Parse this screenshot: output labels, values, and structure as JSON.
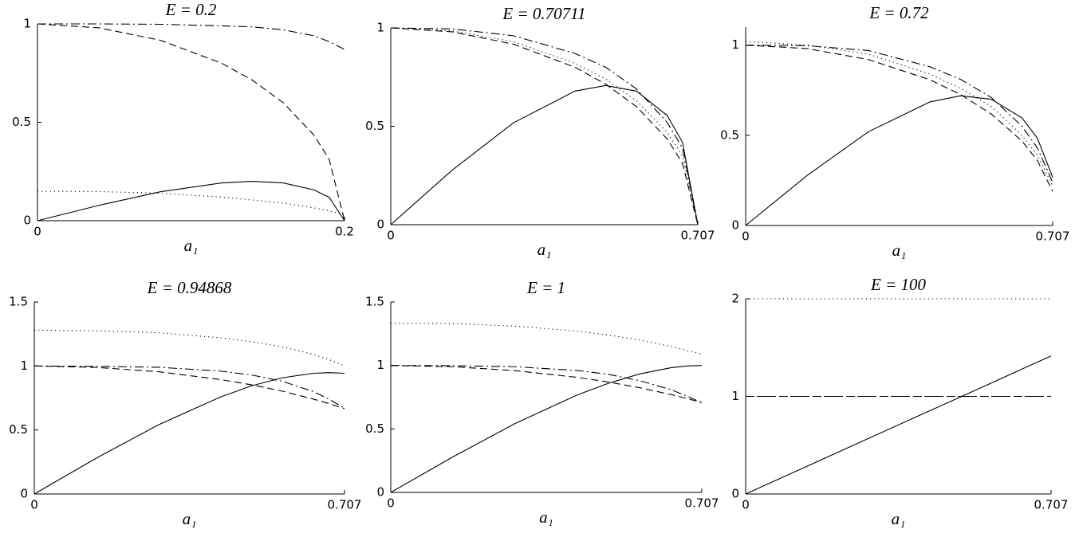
{
  "chart_data": [
    {
      "type": "line",
      "title": "E = 0.2",
      "xlabel": "a₁",
      "xlim": [
        0,
        0.2
      ],
      "xticks": [
        0,
        0.2
      ],
      "ylim": [
        0,
        1
      ],
      "yticks": [
        0,
        0.5,
        1
      ],
      "x": [
        0,
        0.04,
        0.08,
        0.12,
        0.14,
        0.16,
        0.18,
        0.19,
        0.2
      ],
      "series": [
        {
          "color": "#000000",
          "dash": "solid",
          "values": [
            0,
            0.078,
            0.147,
            0.192,
            0.2,
            0.192,
            0.157,
            0.119,
            0
          ]
        },
        {
          "color": "#000000",
          "dash": "dashed",
          "values": [
            1,
            0.98,
            0.917,
            0.8,
            0.714,
            0.6,
            0.436,
            0.312,
            0
          ]
        },
        {
          "color": "#000000",
          "dash": "dotted",
          "values": [
            0.15,
            0.148,
            0.14,
            0.12,
            0.105,
            0.09,
            0.065,
            0.05,
            0.03
          ]
        },
        {
          "color": "#000000",
          "dash": "dashdot",
          "values": [
            1,
            1,
            0.998,
            0.99,
            0.985,
            0.97,
            0.94,
            0.91,
            0.87
          ]
        }
      ]
    },
    {
      "type": "line",
      "title": "E = 0.70711",
      "xlabel": "a₁",
      "xlim": [
        0,
        0.707
      ],
      "xticks": [
        0,
        0.707
      ],
      "ylim": [
        0,
        1
      ],
      "yticks": [
        0,
        0.5,
        1
      ],
      "x": [
        0,
        0.1414,
        0.2828,
        0.4243,
        0.495,
        0.5657,
        0.6364,
        0.6718,
        0.707
      ],
      "series": [
        {
          "color": "#000000",
          "dash": "solid",
          "values": [
            0,
            0.277,
            0.518,
            0.679,
            0.707,
            0.679,
            0.555,
            0.419,
            0
          ]
        },
        {
          "color": "#000000",
          "dash": "dashed",
          "values": [
            1,
            0.98,
            0.917,
            0.8,
            0.714,
            0.6,
            0.436,
            0.312,
            0
          ]
        },
        {
          "color": "#000000",
          "dash": "dotted",
          "values": [
            1,
            0.985,
            0.93,
            0.82,
            0.74,
            0.63,
            0.47,
            0.35,
            0
          ]
        },
        {
          "color": "#000000",
          "dash": "dashdot",
          "values": [
            1,
            0.995,
            0.96,
            0.87,
            0.8,
            0.69,
            0.52,
            0.39,
            0
          ]
        }
      ]
    },
    {
      "type": "line",
      "title": "E = 0.72",
      "xlabel": "a₁",
      "xlim": [
        0,
        0.707
      ],
      "xticks": [
        0,
        0.707
      ],
      "ylim": [
        0,
        1.1
      ],
      "yticks": [
        0,
        0.5,
        1
      ],
      "x": [
        0,
        0.1414,
        0.2828,
        0.4243,
        0.495,
        0.5657,
        0.6364,
        0.6718,
        0.707
      ],
      "series": [
        {
          "color": "#000000",
          "dash": "solid",
          "values": [
            0,
            0.277,
            0.52,
            0.685,
            0.719,
            0.7,
            0.596,
            0.484,
            0.267
          ]
        },
        {
          "color": "#000000",
          "dash": "dashed",
          "values": [
            1,
            0.981,
            0.92,
            0.808,
            0.726,
            0.618,
            0.468,
            0.36,
            0.189
          ]
        },
        {
          "color": "#000000",
          "dash": "dotted",
          "values": [
            1.02,
            1.0,
            0.95,
            0.84,
            0.76,
            0.66,
            0.5,
            0.39,
            0.22
          ]
        },
        {
          "color": "#000000",
          "dash": "dashdot",
          "values": [
            1,
            0.997,
            0.97,
            0.88,
            0.81,
            0.71,
            0.55,
            0.43,
            0.24
          ]
        }
      ]
    },
    {
      "type": "line",
      "title": "E = 0.94868",
      "xlabel": "a₁",
      "xlim": [
        0,
        0.707
      ],
      "xticks": [
        0,
        0.707
      ],
      "ylim": [
        0,
        1.5
      ],
      "yticks": [
        0,
        0.5,
        1,
        1.5
      ],
      "x": [
        0,
        0.1414,
        0.2828,
        0.4243,
        0.495,
        0.5657,
        0.6364,
        0.6718,
        0.707
      ],
      "series": [
        {
          "color": "#000000",
          "dash": "solid",
          "values": [
            0,
            0.28,
            0.54,
            0.758,
            0.845,
            0.908,
            0.943,
            0.948,
            0.943
          ]
        },
        {
          "color": "#000000",
          "dash": "dashed",
          "values": [
            1,
            0.989,
            0.955,
            0.894,
            0.853,
            0.803,
            0.741,
            0.706,
            0.667
          ]
        },
        {
          "color": "#000000",
          "dash": "dotted",
          "values": [
            1.28,
            1.275,
            1.26,
            1.22,
            1.19,
            1.15,
            1.09,
            1.05,
            1.0
          ]
        },
        {
          "color": "#000000",
          "dash": "dashdot",
          "values": [
            1,
            0.997,
            0.99,
            0.96,
            0.93,
            0.88,
            0.8,
            0.74,
            0.67
          ]
        }
      ]
    },
    {
      "type": "line",
      "title": "E = 1",
      "xlabel": "a₁",
      "xlim": [
        0,
        0.707
      ],
      "xticks": [
        0,
        0.707
      ],
      "ylim": [
        0,
        1.5
      ],
      "yticks": [
        0,
        0.5,
        1,
        1.5
      ],
      "x": [
        0,
        0.1414,
        0.2828,
        0.4243,
        0.495,
        0.5657,
        0.6364,
        0.6718,
        0.707
      ],
      "series": [
        {
          "color": "#000000",
          "dash": "solid",
          "values": [
            0,
            0.28,
            0.543,
            0.768,
            0.86,
            0.933,
            0.982,
            0.995,
            1.0
          ]
        },
        {
          "color": "#000000",
          "dash": "dashed",
          "values": [
            1,
            0.99,
            0.959,
            0.906,
            0.869,
            0.825,
            0.771,
            0.741,
            0.707
          ]
        },
        {
          "color": "#000000",
          "dash": "dotted",
          "values": [
            1.333,
            1.33,
            1.31,
            1.27,
            1.24,
            1.2,
            1.15,
            1.12,
            1.09
          ]
        },
        {
          "color": "#000000",
          "dash": "dashdot",
          "values": [
            1,
            0.998,
            0.99,
            0.96,
            0.93,
            0.88,
            0.81,
            0.76,
            0.707
          ]
        }
      ]
    },
    {
      "type": "line",
      "title": "E = 100",
      "xlabel": "a₁",
      "xlim": [
        0,
        0.707
      ],
      "xticks": [
        0,
        0.707
      ],
      "ylim": [
        0,
        2
      ],
      "yticks": [
        0,
        1,
        2
      ],
      "x": [
        0,
        0.1414,
        0.2828,
        0.4243,
        0.495,
        0.5657,
        0.6364,
        0.6718,
        0.707
      ],
      "series": [
        {
          "color": "#000000",
          "dash": "solid",
          "values": [
            0,
            0.283,
            0.566,
            0.849,
            0.99,
            1.131,
            1.273,
            1.344,
            1.414
          ]
        },
        {
          "color": "#000000",
          "dash": "dashed",
          "values": [
            1,
            1,
            1,
            1,
            1,
            1,
            1,
            1,
            1
          ]
        },
        {
          "color": "#000000",
          "dash": "dotted",
          "values": [
            2,
            2,
            2,
            2,
            2,
            2,
            2,
            2,
            2
          ]
        },
        {
          "color": "#000000",
          "dash": "dashdot",
          "values": [
            1,
            1,
            1,
            1,
            1,
            1,
            1,
            1,
            1
          ]
        }
      ]
    }
  ]
}
